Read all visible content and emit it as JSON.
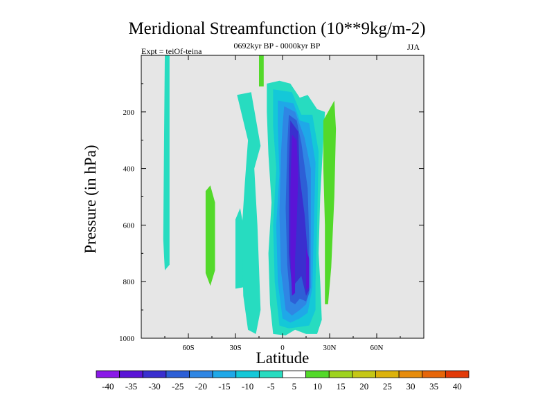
{
  "chart_data": {
    "type": "contour",
    "title": "Meridional Streamfunction (10**9kg/m-2)",
    "subtitle": "0692kyr BP - 0000kyr BP",
    "experiment": "Expt = teiOf-teina",
    "season": "JJA",
    "xlabel": "Latitude",
    "ylabel": "Pressure (in hPa)",
    "xlim": [
      -90,
      90
    ],
    "ylim": [
      1000,
      0
    ],
    "x_ticks": [
      {
        "value": -60,
        "label": "60S"
      },
      {
        "value": -30,
        "label": "30S"
      },
      {
        "value": 0,
        "label": "0"
      },
      {
        "value": 30,
        "label": "30N"
      },
      {
        "value": 60,
        "label": "60N"
      }
    ],
    "y_ticks": [
      {
        "value": 200,
        "label": "200"
      },
      {
        "value": 400,
        "label": "400"
      },
      {
        "value": 600,
        "label": "600"
      },
      {
        "value": 800,
        "label": "800"
      },
      {
        "value": 1000,
        "label": "1000"
      }
    ],
    "contour_levels": [
      "-40",
      "-35",
      "-30",
      "-25",
      "-20",
      "-15",
      "-10",
      "-5",
      "5",
      "10",
      "15",
      "20",
      "25",
      "30",
      "35",
      "40"
    ],
    "colorbar_colors": [
      "#8a19e8",
      "#5a14d6",
      "#3a2fcf",
      "#2d5fd6",
      "#2f86e4",
      "#1fa8e8",
      "#14c8d8",
      "#27dcc0",
      "#ffffff",
      "#53d92a",
      "#9ed31e",
      "#c5c716",
      "#dcb20c",
      "#e68c0c",
      "#e6660a",
      "#e23a08"
    ],
    "regions": [
      {
        "level": "-5",
        "color": "#27dcc0",
        "polygon": [
          [
            -75,
            0
          ],
          [
            -72,
            0
          ],
          [
            -72,
            740
          ],
          [
            -75,
            760
          ],
          [
            -76,
            650
          ]
        ]
      },
      {
        "level": "5",
        "color": "#53d92a",
        "polygon": [
          [
            -15,
            0
          ],
          [
            -12,
            0
          ],
          [
            -12,
            110
          ],
          [
            -15,
            110
          ]
        ]
      },
      {
        "level": "5",
        "color": "#53d92a",
        "polygon": [
          [
            -49,
            480
          ],
          [
            -46,
            460
          ],
          [
            -43,
            520
          ],
          [
            -43,
            760
          ],
          [
            -46,
            815
          ],
          [
            -49,
            770
          ]
        ]
      },
      {
        "level": "-5",
        "color": "#27dcc0",
        "polygon": [
          [
            -30,
            580
          ],
          [
            -27,
            540
          ],
          [
            -25,
            600
          ],
          [
            -25,
            820
          ],
          [
            -30,
            825
          ],
          [
            -30,
            680
          ]
        ]
      },
      {
        "level": "-5",
        "color": "#27dcc0",
        "polygon": [
          [
            -29,
            140
          ],
          [
            -20,
            130
          ],
          [
            -14,
            320
          ],
          [
            -18,
            400
          ],
          [
            -16,
            600
          ],
          [
            -14,
            900
          ],
          [
            -17,
            985
          ],
          [
            -22,
            970
          ],
          [
            -25,
            850
          ],
          [
            -26,
            620
          ],
          [
            -24,
            450
          ],
          [
            -22,
            300
          ]
        ]
      },
      {
        "level": "-5",
        "color": "#27dcc0",
        "polygon": [
          [
            -10,
            100
          ],
          [
            -2,
            90
          ],
          [
            5,
            100
          ],
          [
            11,
            150
          ],
          [
            16,
            140
          ],
          [
            22,
            190
          ],
          [
            27,
            200
          ],
          [
            26,
            300
          ],
          [
            24,
            500
          ],
          [
            23,
            700
          ],
          [
            24,
            800
          ],
          [
            25,
            935
          ],
          [
            22,
            985
          ],
          [
            15,
            985
          ],
          [
            8,
            970
          ],
          [
            2,
            990
          ],
          [
            -6,
            985
          ],
          [
            -8,
            880
          ],
          [
            -9,
            700
          ],
          [
            -7,
            520
          ],
          [
            -9,
            350
          ],
          [
            -10,
            200
          ]
        ]
      },
      {
        "level": "-10",
        "color": "#14c8d8",
        "polygon": [
          [
            -6,
            120
          ],
          [
            6,
            130
          ],
          [
            12,
            210
          ],
          [
            19,
            210
          ],
          [
            23,
            340
          ],
          [
            22,
            600
          ],
          [
            21,
            800
          ],
          [
            21,
            900
          ],
          [
            17,
            955
          ],
          [
            11,
            960
          ],
          [
            4,
            965
          ],
          [
            -2,
            955
          ],
          [
            -5,
            800
          ],
          [
            -6,
            600
          ],
          [
            -4,
            400
          ],
          [
            -6,
            250
          ]
        ]
      },
      {
        "level": "-15",
        "color": "#1fa8e8",
        "polygon": [
          [
            -3,
            160
          ],
          [
            7,
            170
          ],
          [
            11,
            230
          ],
          [
            17,
            240
          ],
          [
            21,
            380
          ],
          [
            20,
            600
          ],
          [
            19,
            820
          ],
          [
            16,
            910
          ],
          [
            11,
            930
          ],
          [
            5,
            945
          ],
          [
            0,
            930
          ],
          [
            -3,
            800
          ],
          [
            -4,
            600
          ],
          [
            -2,
            420
          ],
          [
            -3,
            250
          ]
        ]
      },
      {
        "level": "-20",
        "color": "#2f86e4",
        "polygon": [
          [
            1,
            180
          ],
          [
            8,
            200
          ],
          [
            14,
            290
          ],
          [
            18,
            400
          ],
          [
            18,
            620
          ],
          [
            18,
            820
          ],
          [
            15,
            880
          ],
          [
            11,
            900
          ],
          [
            6,
            920
          ],
          [
            2,
            900
          ],
          [
            -1,
            760
          ],
          [
            -2,
            560
          ],
          [
            -1,
            350
          ],
          [
            0,
            250
          ]
        ]
      },
      {
        "level": "-25",
        "color": "#2d5fd6",
        "polygon": [
          [
            4,
            210
          ],
          [
            9,
            230
          ],
          [
            12,
            310
          ],
          [
            16,
            470
          ],
          [
            17,
            650
          ],
          [
            17,
            840
          ],
          [
            15,
            870
          ],
          [
            11,
            860
          ],
          [
            8,
            880
          ],
          [
            5,
            870
          ],
          [
            3,
            740
          ],
          [
            2,
            540
          ],
          [
            3,
            320
          ]
        ]
      },
      {
        "level": "-30",
        "color": "#3a2fcf",
        "polygon": [
          [
            5,
            230
          ],
          [
            10,
            270
          ],
          [
            11,
            430
          ],
          [
            14,
            560
          ],
          [
            16,
            700
          ],
          [
            17,
            830
          ],
          [
            15,
            850
          ],
          [
            12,
            780
          ],
          [
            9,
            800
          ],
          [
            6,
            820
          ],
          [
            4,
            700
          ],
          [
            4,
            400
          ]
        ]
      },
      {
        "level": "-35",
        "color": "#5a14d6",
        "polygon": [
          [
            6,
            280
          ],
          [
            9,
            300
          ],
          [
            10,
            420
          ],
          [
            9,
            600
          ],
          [
            8,
            720
          ],
          [
            8,
            840
          ],
          [
            6,
            850
          ],
          [
            5,
            700
          ],
          [
            5,
            480
          ]
        ]
      },
      {
        "level": "-35",
        "color": "#5a14d6",
        "polygon": [
          [
            15,
            680
          ],
          [
            17,
            720
          ],
          [
            17,
            820
          ],
          [
            15,
            830
          ]
        ]
      },
      {
        "level": "5",
        "color": "#53d92a",
        "polygon": [
          [
            26,
            230
          ],
          [
            33,
            160
          ],
          [
            34,
            260
          ],
          [
            33,
            500
          ],
          [
            31,
            750
          ],
          [
            29,
            880
          ],
          [
            27,
            880
          ],
          [
            27,
            600
          ],
          [
            26,
            400
          ]
        ]
      }
    ]
  }
}
